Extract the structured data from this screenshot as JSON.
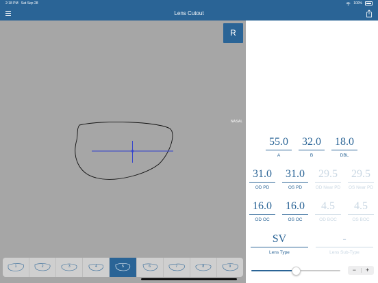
{
  "status_bar": {
    "time": "2:18 PM",
    "date": "Sat Sep 28",
    "battery": "100%"
  },
  "nav": {
    "title": "Lens Cutout"
  },
  "canvas": {
    "r_button": "R",
    "nasal_label": "NASAL"
  },
  "shapes": [
    "1",
    "2",
    "3",
    "4",
    "5",
    "6",
    "7",
    "8",
    "9"
  ],
  "selected_shape": "5",
  "measurements": {
    "a": {
      "value": "55.0",
      "label": "A"
    },
    "b": {
      "value": "32.0",
      "label": "B"
    },
    "dbl": {
      "value": "18.0",
      "label": "DBL"
    },
    "od_pd": {
      "value": "31.0",
      "label": "OD PD"
    },
    "os_pd": {
      "value": "31.0",
      "label": "OS PD"
    },
    "od_near_pd": {
      "value": "29.5",
      "label": "OD Near PD"
    },
    "os_near_pd": {
      "value": "29.5",
      "label": "OS Near PD"
    },
    "od_oc": {
      "value": "16.0",
      "label": "OD OC"
    },
    "os_oc": {
      "value": "16.0",
      "label": "OS OC"
    },
    "od_boc": {
      "value": "4.5",
      "label": "OD BOC"
    },
    "os_boc": {
      "value": "4.5",
      "label": "OS BOC"
    },
    "lens_type": {
      "value": "SV",
      "label": "Lens Type"
    },
    "lens_sub_type": {
      "value": "-",
      "label": "Lens Sub-Type"
    }
  },
  "stepper": {
    "minus": "−",
    "plus": "+"
  },
  "slider": {
    "fraction": 0.5
  },
  "colors": {
    "accent": "#2a6496",
    "canvas": "#a6a6a6",
    "dim": "#c9d7e3"
  }
}
